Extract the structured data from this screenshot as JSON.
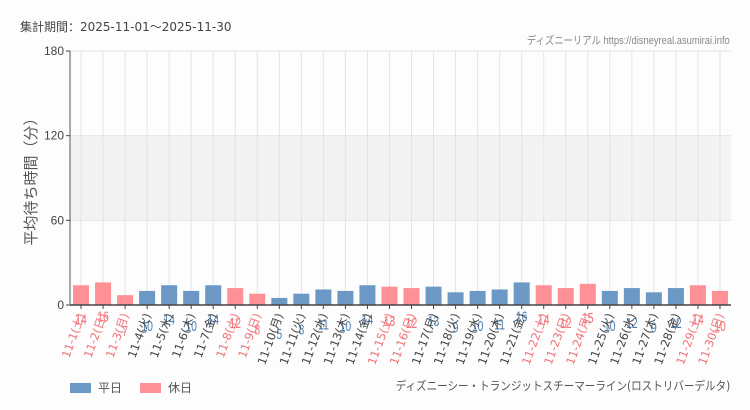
{
  "header": {
    "period_label": "集計期間：2025-11-01～2025-11-30",
    "credit": "ディズニーリアル https://disneyreal.asumirai.info"
  },
  "legend": {
    "weekday_label": "平日",
    "holiday_label": "休日"
  },
  "footer": {
    "attraction_name": "ディズニーシー・トランジットスチーマーライン(ロストリバーデルタ)"
  },
  "colors": {
    "weekday_bar": "#6b98c5",
    "holiday_bar": "#ff9196",
    "weekday_text": "#4f7fb1",
    "holiday_text": "#f2737a",
    "band": "#f3f3f3",
    "grid": "#e4e4e4"
  },
  "chart_data": {
    "type": "bar",
    "title": "",
    "xlabel": "",
    "ylabel": "平均待ち時間（分）",
    "ylim": [
      0,
      180
    ],
    "yticks": [
      0,
      60,
      120,
      180
    ],
    "grid": true,
    "shaded_band": [
      60,
      120
    ],
    "legend_position": "bottom-left",
    "categories": [
      "11-1(土)",
      "11-2(日)",
      "11-3(月)",
      "11-4(火)",
      "11-5(水)",
      "11-6(木)",
      "11-7(金)",
      "11-8(土)",
      "11-9(日)",
      "11-10(月)",
      "11-11(火)",
      "11-12(水)",
      "11-13(木)",
      "11-14(金)",
      "11-15(土)",
      "11-16(日)",
      "11-17(月)",
      "11-18(火)",
      "11-19(水)",
      "11-20(木)",
      "11-21(金)",
      "11-22(土)",
      "11-23(日)",
      "11-24(月)",
      "11-25(火)",
      "11-26(水)",
      "11-27(木)",
      "11-28(金)",
      "11-29(土)",
      "11-30(日)"
    ],
    "values": [
      14,
      16,
      7,
      10,
      14,
      10,
      14,
      12,
      8,
      5,
      8,
      11,
      10,
      14,
      13,
      12,
      13,
      9,
      10,
      11,
      16,
      14,
      12,
      15,
      10,
      12,
      9,
      12,
      14,
      10
    ],
    "day_type": [
      "holiday",
      "holiday",
      "holiday",
      "weekday",
      "weekday",
      "weekday",
      "weekday",
      "holiday",
      "holiday",
      "weekday",
      "weekday",
      "weekday",
      "weekday",
      "weekday",
      "holiday",
      "holiday",
      "weekday",
      "weekday",
      "weekday",
      "weekday",
      "weekday",
      "holiday",
      "holiday",
      "holiday",
      "weekday",
      "weekday",
      "weekday",
      "weekday",
      "holiday",
      "holiday"
    ],
    "series": [
      {
        "name": "平日",
        "color": "#6b98c5"
      },
      {
        "name": "休日",
        "color": "#ff9196"
      }
    ]
  }
}
